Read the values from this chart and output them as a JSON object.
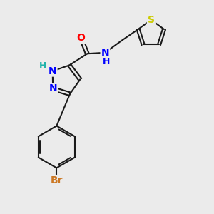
{
  "background_color": "#ebebeb",
  "bond_color": "#1a1a1a",
  "bond_width": 1.5,
  "atom_colors": {
    "N": "#0000ff",
    "O": "#ff0000",
    "S": "#cccc00",
    "Br": "#cc7722",
    "H_teal": "#20b2aa",
    "C": "#1a1a1a"
  },
  "font_size": 10,
  "fig_size": [
    3.0,
    3.0
  ],
  "dpi": 100
}
